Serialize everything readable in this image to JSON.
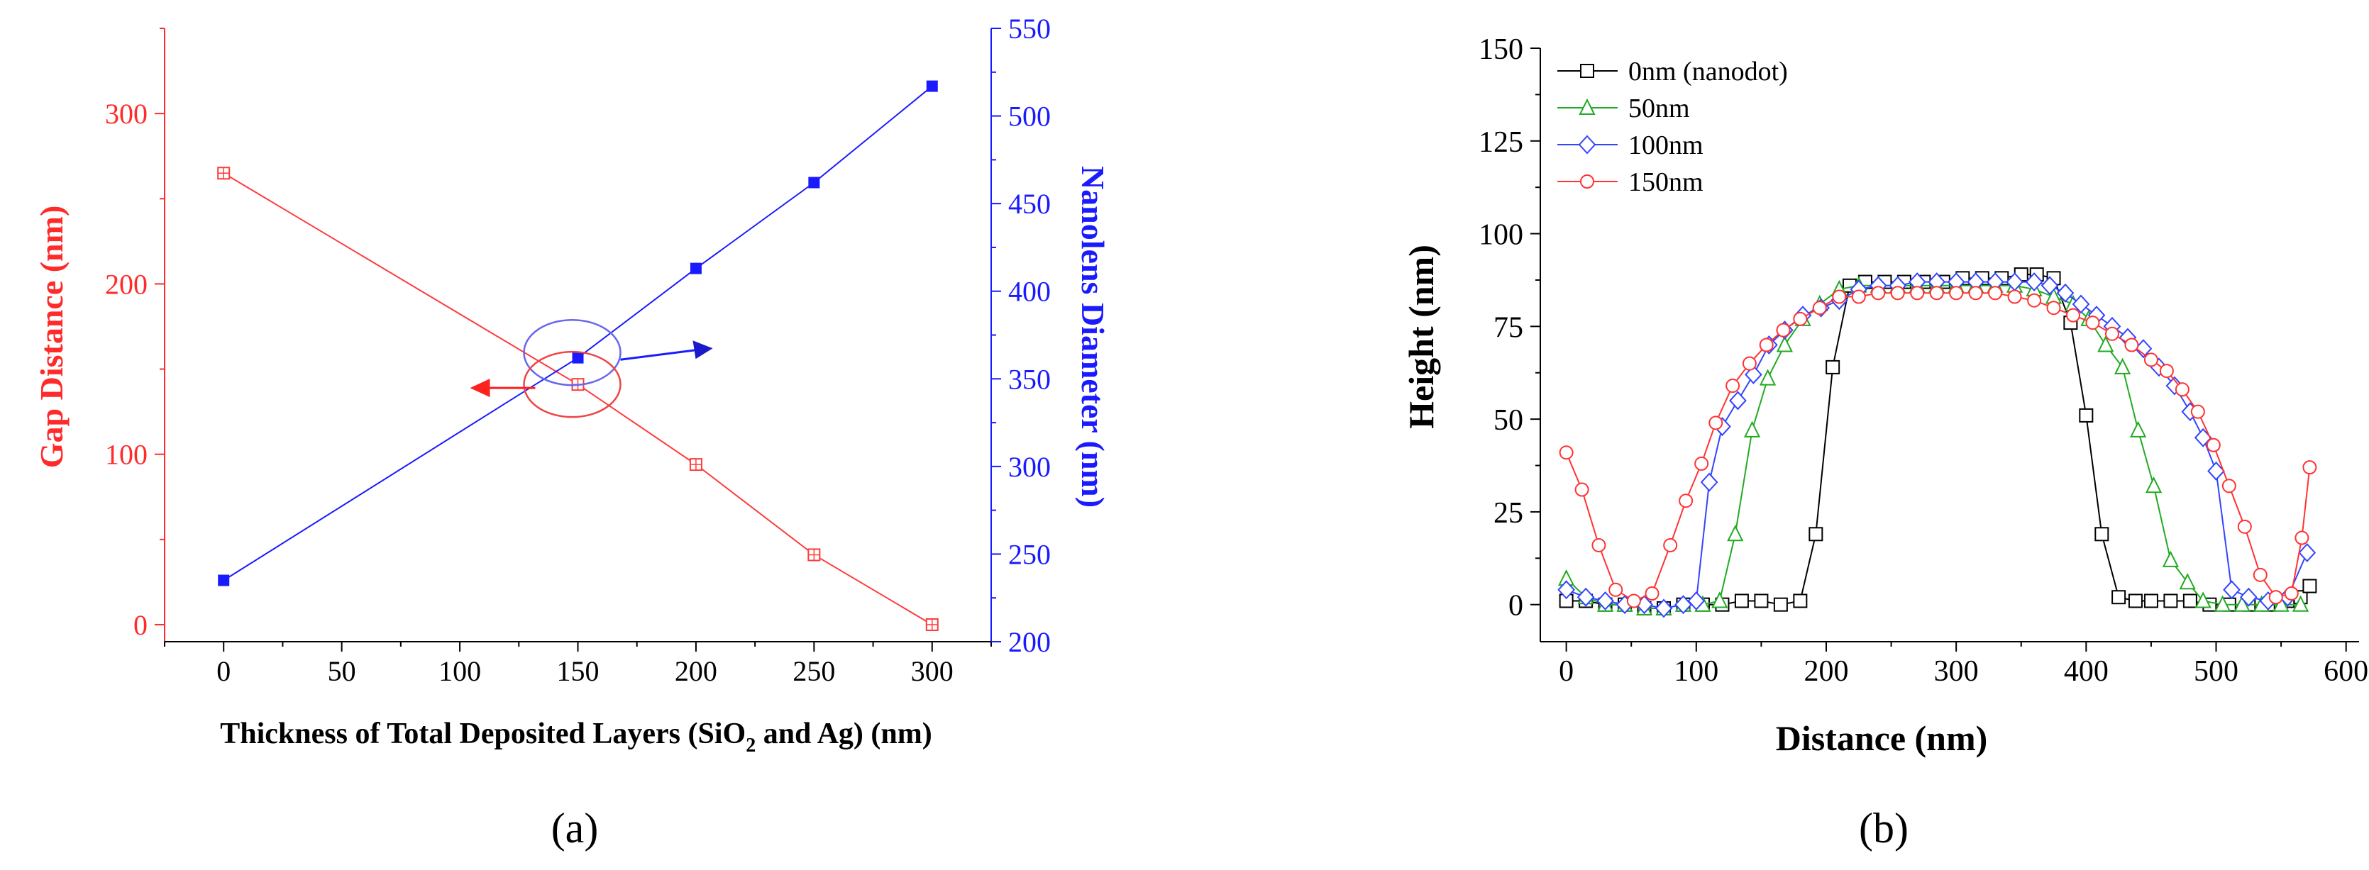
{
  "chart_data": [
    {
      "panel_label": "(a)",
      "type": "line",
      "x": [
        0,
        50,
        100,
        150,
        200,
        250,
        300
      ],
      "xlabel": "Thickness of Total Deposited Layers (SiO2 and Ag)  (nm)",
      "xlabel_parts": {
        "pre": "Thickness of Total Deposited Layers (SiO",
        "sub": "2",
        "post": " and Ag)  (nm)"
      },
      "xlim": [
        -25,
        325
      ],
      "xticks": [
        "0",
        "50",
        "100",
        "150",
        "200",
        "250",
        "300"
      ],
      "y_left": {
        "label": "Gap Distance (nm)",
        "ylim": [
          -10,
          350
        ],
        "ticks": [
          "0",
          "100",
          "200",
          "300"
        ],
        "color": "#ff2a2a"
      },
      "y_right": {
        "label": "Nanolens Diameter (nm)",
        "ylim": [
          200,
          550
        ],
        "ticks": [
          "200",
          "250",
          "300",
          "350",
          "400",
          "450",
          "500",
          "550"
        ],
        "color": "#1a1aff"
      },
      "series": [
        {
          "name": "Gap Distance",
          "axis": "left",
          "color": "#ff3b3b",
          "marker": "open-square",
          "x": [
            0,
            150,
            200,
            250,
            300
          ],
          "values": [
            265,
            141,
            94,
            41,
            0
          ]
        },
        {
          "name": "Nanolens Diameter",
          "axis": "right",
          "color": "#1a1aff",
          "marker": "filled-square",
          "x": [
            0,
            150,
            200,
            250,
            300
          ],
          "values": [
            235,
            362,
            413,
            462,
            517
          ]
        }
      ],
      "annotations": [
        {
          "type": "ellipse",
          "axis": "right",
          "cx": 150,
          "cy": 365,
          "color": "#6666ee",
          "arrow": "right"
        },
        {
          "type": "ellipse",
          "axis": "left",
          "cx": 150,
          "cy": 141,
          "color": "#ee4444",
          "arrow": "left"
        }
      ]
    },
    {
      "panel_label": "(b)",
      "type": "line",
      "xlabel": "Distance (nm)",
      "ylabel": "Height (nm)",
      "xlim": [
        -20,
        610
      ],
      "ylim": [
        -10,
        150
      ],
      "xticks": [
        "0",
        "100",
        "200",
        "300",
        "400",
        "500",
        "600"
      ],
      "yticks": [
        "0",
        "25",
        "50",
        "75",
        "100",
        "125",
        "150"
      ],
      "legend_position": "top-left",
      "series": [
        {
          "name": "0nm (nanodot)",
          "color": "#000000",
          "marker": "square",
          "x": [
            0,
            15,
            30,
            45,
            60,
            75,
            90,
            105,
            120,
            135,
            150,
            165,
            180,
            192,
            205,
            218,
            230,
            245,
            260,
            275,
            290,
            305,
            320,
            335,
            350,
            362,
            375,
            388,
            400,
            412,
            425,
            438,
            450,
            465,
            480,
            495,
            510,
            525,
            540,
            555,
            565,
            572
          ],
          "values": [
            1,
            1,
            0,
            0,
            -1,
            -1,
            0,
            0,
            0,
            1,
            1,
            0,
            1,
            19,
            64,
            86,
            87,
            87,
            87,
            87,
            87,
            88,
            88,
            88,
            89,
            89,
            88,
            76,
            51,
            19,
            2,
            1,
            1,
            1,
            1,
            0,
            0,
            0,
            0,
            1,
            2,
            5
          ]
        },
        {
          "name": "50nm",
          "color": "#22aa22",
          "marker": "triangle",
          "x": [
            0,
            15,
            30,
            45,
            60,
            75,
            90,
            105,
            118,
            130,
            143,
            155,
            168,
            182,
            195,
            210,
            225,
            240,
            255,
            270,
            285,
            300,
            315,
            330,
            345,
            360,
            375,
            390,
            402,
            415,
            428,
            440,
            452,
            465,
            478,
            490,
            505,
            520,
            535,
            550,
            565
          ],
          "values": [
            7,
            2,
            0,
            0,
            -1,
            -1,
            0,
            0,
            1,
            19,
            47,
            61,
            70,
            77,
            81,
            85,
            86,
            86,
            86,
            86,
            86,
            86,
            86,
            86,
            86,
            85,
            83,
            81,
            77,
            70,
            64,
            47,
            32,
            12,
            6,
            1,
            0,
            0,
            0,
            0,
            0
          ]
        },
        {
          "name": "100nm",
          "color": "#3344ff",
          "marker": "diamond",
          "x": [
            0,
            15,
            30,
            45,
            60,
            75,
            90,
            100,
            110,
            120,
            132,
            144,
            156,
            168,
            182,
            196,
            210,
            225,
            240,
            255,
            270,
            285,
            300,
            315,
            330,
            345,
            360,
            372,
            384,
            396,
            408,
            420,
            432,
            444,
            456,
            468,
            480,
            490,
            500,
            512,
            525,
            540,
            555,
            570
          ],
          "values": [
            4,
            2,
            1,
            0,
            0,
            -1,
            0,
            1,
            33,
            48,
            55,
            62,
            70,
            74,
            78,
            80,
            82,
            85,
            86,
            86,
            87,
            87,
            87,
            87,
            87,
            87,
            87,
            86,
            84,
            81,
            78,
            75,
            72,
            69,
            64,
            59,
            52,
            45,
            36,
            4,
            2,
            1,
            2,
            14
          ]
        },
        {
          "name": "150nm",
          "color": "#ff3333",
          "marker": "circle",
          "x": [
            0,
            12,
            25,
            38,
            52,
            66,
            80,
            92,
            104,
            115,
            128,
            141,
            154,
            167,
            180,
            195,
            210,
            225,
            240,
            255,
            270,
            285,
            300,
            315,
            330,
            345,
            360,
            375,
            390,
            405,
            420,
            435,
            450,
            462,
            474,
            486,
            498,
            510,
            522,
            534,
            546,
            558,
            566,
            572
          ],
          "values": [
            41,
            31,
            16,
            4,
            1,
            3,
            16,
            28,
            38,
            49,
            59,
            65,
            70,
            74,
            77,
            80,
            83,
            83,
            84,
            84,
            84,
            84,
            84,
            84,
            84,
            83,
            82,
            80,
            78,
            76,
            73,
            70,
            66,
            63,
            58,
            52,
            43,
            32,
            21,
            8,
            2,
            3,
            18,
            37
          ]
        }
      ]
    }
  ]
}
